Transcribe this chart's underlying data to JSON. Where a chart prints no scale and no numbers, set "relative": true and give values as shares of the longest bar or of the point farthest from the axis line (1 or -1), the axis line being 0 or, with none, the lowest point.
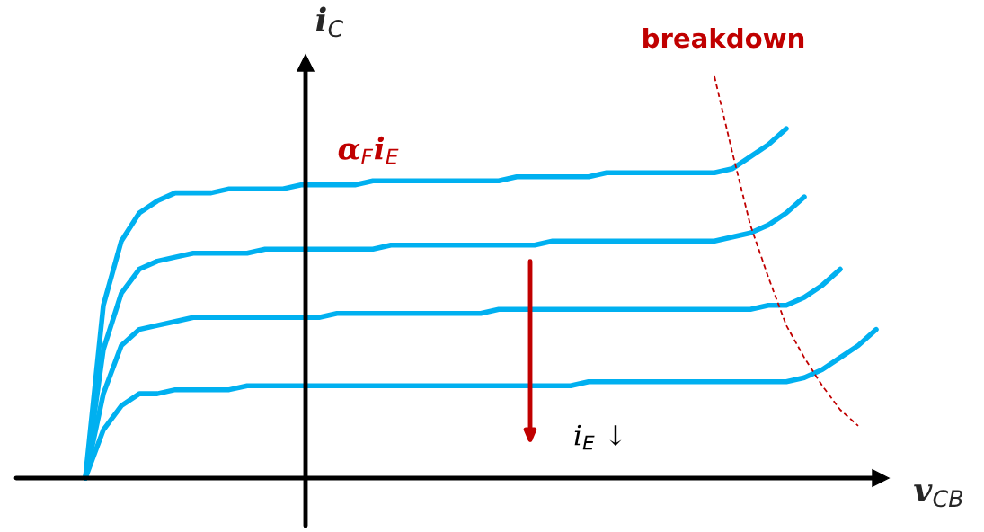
{
  "chart_data": {
    "type": "line",
    "relative": true,
    "title": "breakdown",
    "xlabel": "v$_{CB}$",
    "ylabel": "i$_{C}$",
    "annotations": [
      "α$_{F}$i$_{E}$",
      "i$_{E}$ ↓"
    ],
    "categories": [
      null,
      null,
      null,
      null,
      null,
      null,
      null,
      null,
      null,
      null,
      null,
      null,
      null,
      null,
      null,
      null,
      null,
      null,
      null,
      null,
      null,
      null,
      null,
      null,
      null,
      null,
      null,
      null,
      null,
      null,
      null,
      null,
      null,
      null,
      null,
      null,
      null,
      null,
      null,
      null,
      null,
      null,
      null,
      null,
      null
    ],
    "grid": false,
    "legend": false,
    "marker": "none",
    "series": [
      {
        "color": "#00b0f0",
        "line_style": "solid",
        "values": [
          0,
          0.43,
          0.59,
          0.66,
          0.69,
          0.71,
          0.71,
          0.71,
          0.72,
          0.72,
          0.72,
          0.72,
          0.73,
          0.73,
          0.73,
          0.73,
          0.74,
          0.74,
          0.74,
          0.74,
          0.74,
          0.74,
          0.74,
          0.74,
          0.75,
          0.75,
          0.75,
          0.75,
          0.75,
          0.76,
          0.76,
          0.76,
          0.76,
          0.76,
          0.76,
          0.76,
          0.77,
          0.8,
          0.83,
          0.87,
          null,
          null,
          null,
          null,
          null
        ]
      },
      {
        "color": "#00b0f0",
        "line_style": "solid",
        "values": [
          0,
          0.32,
          0.46,
          0.52,
          0.54,
          0.55,
          0.56,
          0.56,
          0.56,
          0.56,
          0.57,
          0.57,
          0.57,
          0.57,
          0.57,
          0.57,
          0.57,
          0.58,
          0.58,
          0.58,
          0.58,
          0.58,
          0.58,
          0.58,
          0.58,
          0.58,
          0.59,
          0.59,
          0.59,
          0.59,
          0.59,
          0.59,
          0.59,
          0.59,
          0.59,
          0.59,
          0.6,
          0.61,
          0.63,
          0.66,
          0.7,
          null,
          null,
          null,
          null
        ]
      },
      {
        "color": "#00b0f0",
        "line_style": "solid",
        "values": [
          0,
          0.21,
          0.33,
          0.37,
          0.38,
          0.39,
          0.4,
          0.4,
          0.4,
          0.4,
          0.4,
          0.4,
          0.4,
          0.4,
          0.41,
          0.41,
          0.41,
          0.41,
          0.41,
          0.41,
          0.41,
          0.41,
          0.41,
          0.42,
          0.42,
          0.42,
          0.42,
          0.42,
          0.42,
          0.42,
          0.42,
          0.42,
          0.42,
          0.42,
          0.42,
          0.42,
          0.42,
          0.42,
          0.43,
          0.43,
          0.45,
          0.48,
          0.52,
          null,
          null
        ]
      },
      {
        "color": "#00b0f0",
        "line_style": "solid",
        "values": [
          0,
          0.12,
          0.18,
          0.21,
          0.21,
          0.22,
          0.22,
          0.22,
          0.22,
          0.23,
          0.23,
          0.23,
          0.23,
          0.23,
          0.23,
          0.23,
          0.23,
          0.23,
          0.23,
          0.23,
          0.23,
          0.23,
          0.23,
          0.23,
          0.23,
          0.23,
          0.23,
          0.23,
          0.24,
          0.24,
          0.24,
          0.24,
          0.24,
          0.24,
          0.24,
          0.24,
          0.24,
          0.24,
          0.24,
          0.24,
          0.25,
          0.27,
          0.3,
          0.33,
          0.37
        ]
      },
      {
        "color": "#c00000",
        "line_style": "dashed",
        "values": [
          null,
          null,
          null,
          null,
          null,
          null,
          null,
          null,
          null,
          null,
          null,
          null,
          null,
          null,
          null,
          null,
          null,
          null,
          null,
          null,
          null,
          null,
          null,
          null,
          null,
          null,
          null,
          null,
          null,
          null,
          null,
          null,
          null,
          null,
          null,
          1.0,
          0.81,
          0.63,
          0.5,
          0.38,
          0.3,
          0.23,
          0.17,
          0.13,
          null
        ]
      }
    ]
  }
}
